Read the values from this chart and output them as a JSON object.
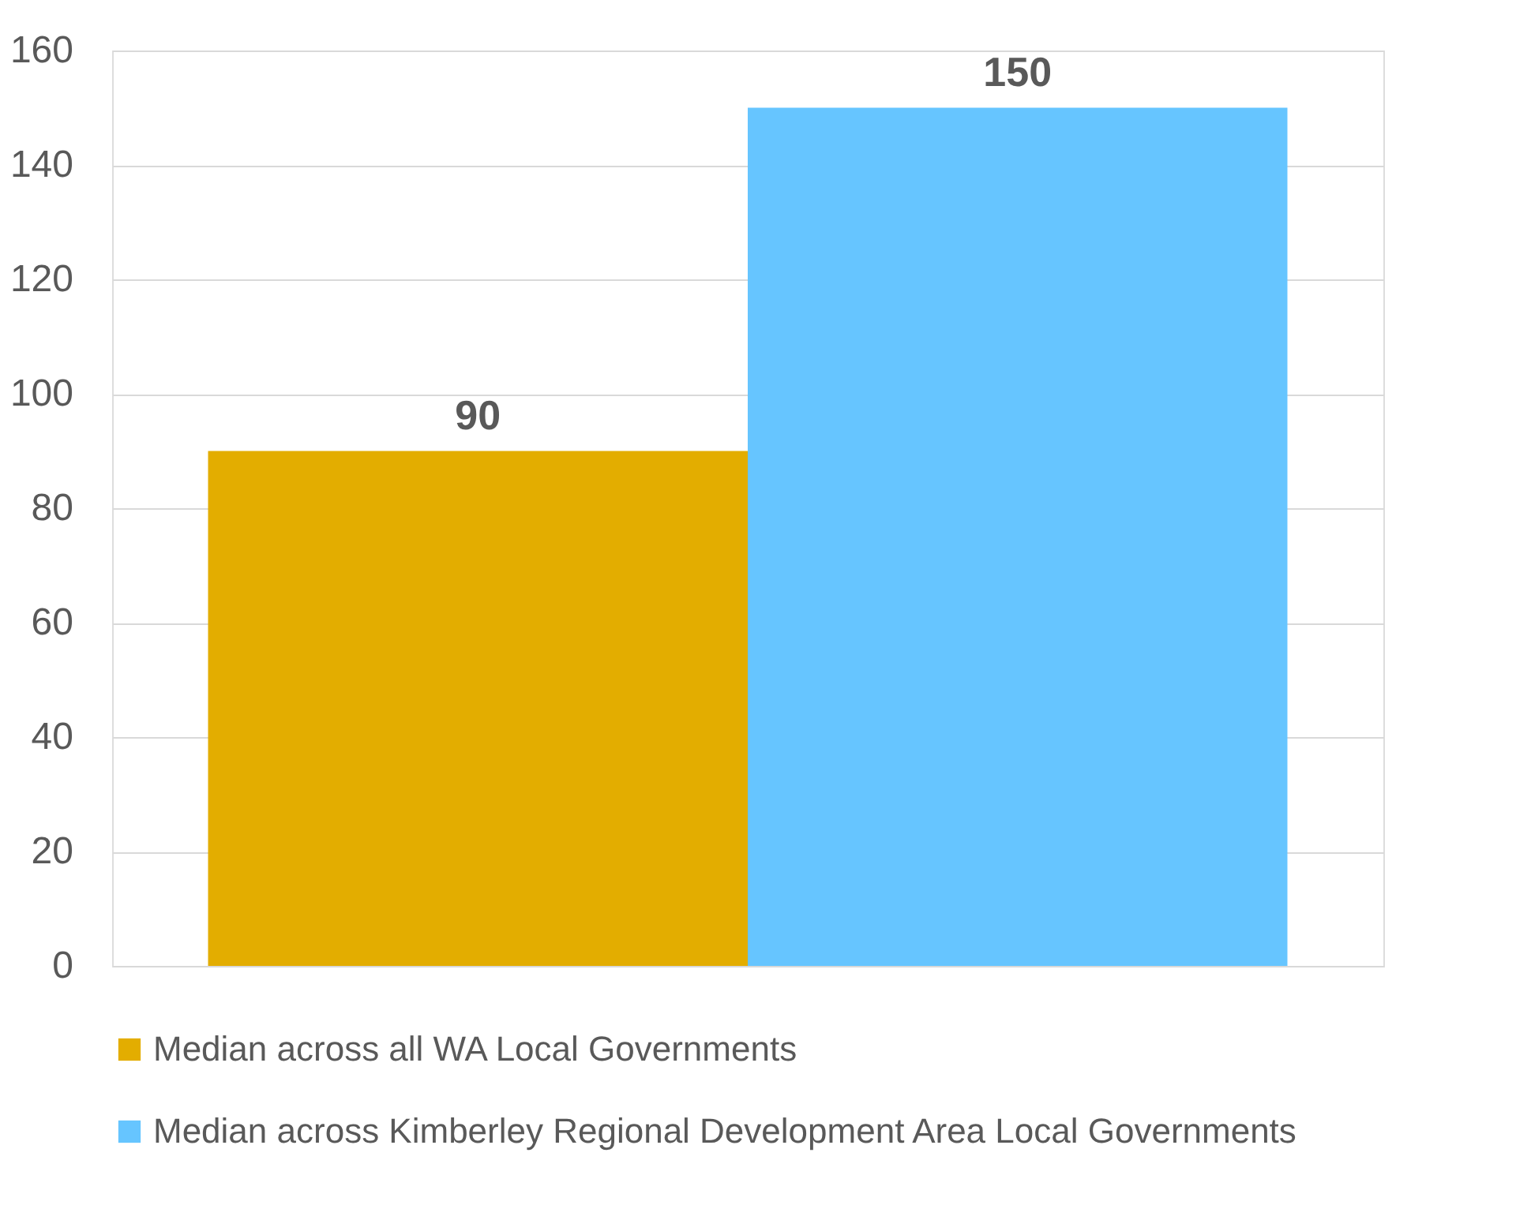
{
  "chart_data": {
    "type": "bar",
    "categories": [
      null
    ],
    "series": [
      {
        "name": "Median across all WA Local Governments",
        "color": "#e3ad00",
        "values": [
          90
        ]
      },
      {
        "name": "Median across Kimberley Regional Development Area Local Governments",
        "color": "#66c5ff",
        "values": [
          150
        ]
      }
    ],
    "ylim": [
      0,
      160
    ],
    "yticks": [
      0,
      20,
      40,
      60,
      80,
      100,
      120,
      140,
      160
    ],
    "grid": "y",
    "legend": "bottom",
    "data_labels": true
  }
}
